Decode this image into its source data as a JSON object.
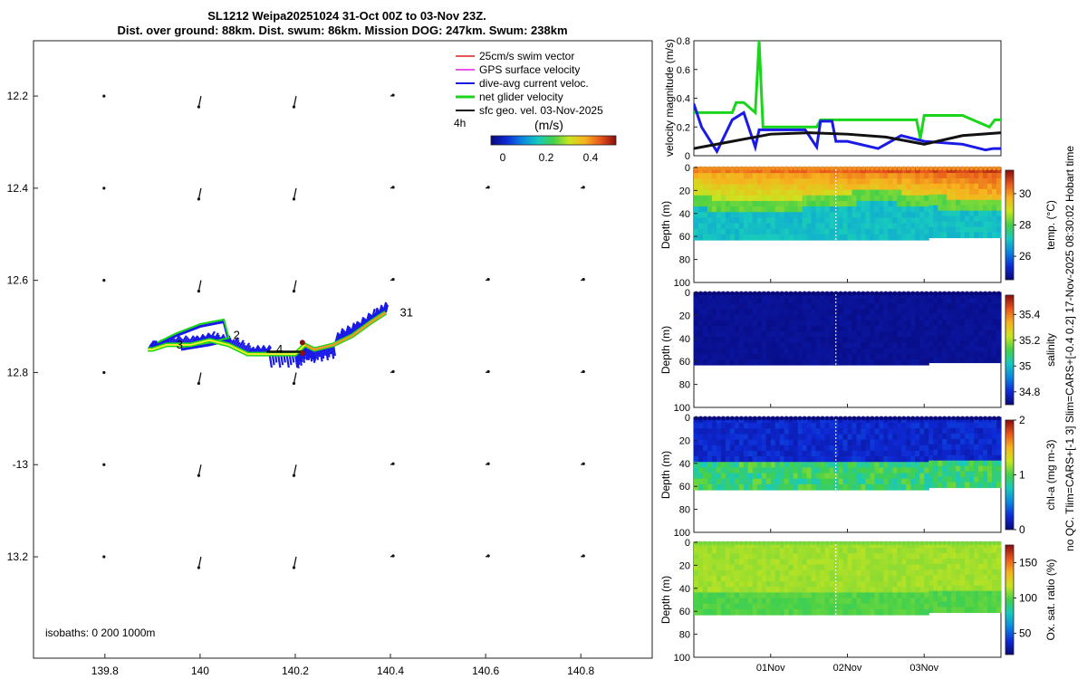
{
  "title": {
    "line1": "SL1212 Weipa20251024 31-Oct 00Z to 03-Nov 23Z.",
    "line2": "Dist. over ground: 88km. Dist. swum: 86km. Mission DOG: 247km. Swum: 238km"
  },
  "side_note": "no QC. Tlim=CARS+[-1 3] Slim=CARS+[-0.4 0.2] 17-Nov-2025 08:30:02 Hobart time",
  "colors": {
    "swim": "#e41a1c",
    "gps": "#e619e6",
    "diveavg": "#1a1ae6",
    "netglider": "#1ad61a",
    "sfcgeo": "#111111",
    "track_yellow": "#f5ef2c",
    "track_orange": "#ef9a2a",
    "cmap": [
      "#08087a",
      "#0e2ad6",
      "#0a86e0",
      "#17c9c0",
      "#44d04a",
      "#c9e51f",
      "#f7b21e",
      "#e8561c",
      "#8a0c0c"
    ]
  },
  "map": {
    "xlim": [
      139.65,
      140.95
    ],
    "ylim": [
      -13.42,
      -12.08
    ],
    "xticks": [
      139.8,
      140,
      140.2,
      140.4,
      140.6,
      140.8
    ],
    "xticklabels": [
      "139.8",
      "140",
      "140.2",
      "140.4",
      "140.6",
      "140.8"
    ],
    "yticks": [
      -12.2,
      -12.4,
      -12.6,
      -12.8,
      -13,
      -13.2
    ],
    "yticklabels": [
      "12.2",
      "12.4",
      "12.6",
      "12.8",
      "-13",
      "13.2"
    ],
    "legend": [
      {
        "label": "25cm/s swim vector",
        "color": "#e41a1c"
      },
      {
        "label": "GPS surface velocity",
        "color": "#e619e6"
      },
      {
        "label": "dive-avg current veloc.",
        "color": "#1a1ae6"
      },
      {
        "label": "net glider velocity",
        "color": "#1ad61a"
      },
      {
        "label": "sfc geo. vel. 03-Nov-2025",
        "color": "#111111"
      }
    ],
    "timescale_label": "4h",
    "colorbar_label": "(m/s)",
    "colorbar_ticks": [
      "0",
      "0.2",
      "0.4"
    ],
    "isobaths": "isobaths: 0   200  1000m",
    "day_labels": [
      {
        "text": "3",
        "lon": 139.95,
        "lat": -12.74
      },
      {
        "text": "2",
        "lon": 140.07,
        "lat": -12.72
      },
      {
        "text": "4",
        "lon": 140.16,
        "lat": -12.75
      },
      {
        "text": "31",
        "lon": 140.42,
        "lat": -12.67
      }
    ],
    "track": [
      [
        140.39,
        -12.67
      ],
      [
        140.36,
        -12.69
      ],
      [
        140.32,
        -12.72
      ],
      [
        140.28,
        -12.74
      ],
      [
        140.24,
        -12.75
      ],
      [
        140.22,
        -12.74
      ],
      [
        140.2,
        -12.76
      ],
      [
        140.14,
        -12.76
      ],
      [
        140.1,
        -12.76
      ],
      [
        140.06,
        -12.74
      ],
      [
        140.02,
        -12.73
      ],
      [
        139.98,
        -12.74
      ],
      [
        139.93,
        -12.74
      ],
      [
        139.9,
        -12.75
      ],
      [
        139.89,
        -12.75
      ]
    ],
    "geo_vectors_lon": [
      139.8,
      140.0,
      140.2,
      140.4,
      140.6,
      140.8
    ],
    "geo_vectors_lat": [
      -12.2,
      -12.4,
      -12.6,
      -12.8,
      -13.0,
      -13.2
    ]
  },
  "chart_data": [
    {
      "type": "line",
      "title": "",
      "ylabel": "velocity magnitude (m/s)",
      "ylim": [
        0,
        0.8
      ],
      "yticks": [
        "0",
        "0.2",
        "0.4",
        "0.6",
        "0.8"
      ],
      "x_days": [
        0,
        4
      ],
      "series": [
        {
          "name": "net glider velocity",
          "x": [
            0,
            0.05,
            0.2,
            0.5,
            0.55,
            0.65,
            0.8,
            0.85,
            0.9,
            1.0,
            1.3,
            1.6,
            1.65,
            1.8,
            2.0,
            2.4,
            2.9,
            2.95,
            3.0,
            3.5,
            3.85,
            3.92,
            4.0
          ],
          "values": [
            0.3,
            0.3,
            0.3,
            0.3,
            0.37,
            0.37,
            0.3,
            0.8,
            0.2,
            0.2,
            0.2,
            0.2,
            0.25,
            0.25,
            0.25,
            0.25,
            0.25,
            0.12,
            0.28,
            0.28,
            0.2,
            0.25,
            0.25
          ]
        },
        {
          "name": "dive-avg current veloc.",
          "x": [
            0,
            0.1,
            0.3,
            0.5,
            0.65,
            0.8,
            0.85,
            1.0,
            1.45,
            1.6,
            1.65,
            1.8,
            1.85,
            2.0,
            2.4,
            2.7,
            3.0,
            3.5,
            3.8,
            3.9,
            4.0
          ],
          "values": [
            0.36,
            0.2,
            0.03,
            0.25,
            0.3,
            0.06,
            0.18,
            0.18,
            0.18,
            0.06,
            0.24,
            0.24,
            0.1,
            0.1,
            0.05,
            0.14,
            0.1,
            0.08,
            0.04,
            0.05,
            0.05
          ]
        },
        {
          "name": "sfc geo. vel.",
          "x": [
            0,
            0.5,
            1.0,
            1.5,
            2.0,
            2.5,
            3.0,
            3.5,
            4.0
          ],
          "values": [
            0.05,
            0.1,
            0.15,
            0.16,
            0.15,
            0.13,
            0.08,
            0.14,
            0.16
          ]
        }
      ]
    },
    {
      "type": "heatmap",
      "ylabel": "Depth (m)",
      "colorbar_label": "temp. (°C)",
      "clim": [
        24.5,
        31.5
      ],
      "colorbar_ticks": [
        "26",
        "28",
        "30"
      ],
      "colorbar_tick_values": [
        26,
        28,
        30
      ],
      "yticks": [
        "0",
        "20",
        "40",
        "60",
        "80",
        "100"
      ]
    },
    {
      "type": "heatmap",
      "ylabel": "Depth (m)",
      "colorbar_label": "salinity",
      "clim": [
        34.7,
        35.55
      ],
      "colorbar_ticks": [
        "34.8",
        "35",
        "35.2",
        "35.4"
      ],
      "colorbar_tick_values": [
        34.8,
        35,
        35.2,
        35.4
      ],
      "yticks": [
        "0",
        "20",
        "40",
        "60",
        "80",
        "100"
      ]
    },
    {
      "type": "heatmap",
      "ylabel": "Depth (m)",
      "colorbar_label": "chl-a (mg m-3)",
      "clim": [
        0,
        2
      ],
      "colorbar_ticks": [
        "0",
        "1",
        "2"
      ],
      "colorbar_tick_values": [
        0,
        1,
        2
      ],
      "yticks": [
        "0",
        "20",
        "40",
        "60",
        "80",
        "100"
      ]
    },
    {
      "type": "heatmap",
      "ylabel": "Depth (m)",
      "colorbar_label": "Ox. sat. ratio (%)",
      "clim": [
        20,
        175
      ],
      "colorbar_ticks": [
        "50",
        "100",
        "150"
      ],
      "colorbar_tick_values": [
        50,
        100,
        150
      ],
      "yticks": [
        "0",
        "20",
        "40",
        "60",
        "80",
        "100"
      ],
      "xticklabels": [
        "01Nov",
        "02Nov",
        "03Nov"
      ],
      "xtick_days": [
        1,
        2,
        3
      ]
    }
  ]
}
